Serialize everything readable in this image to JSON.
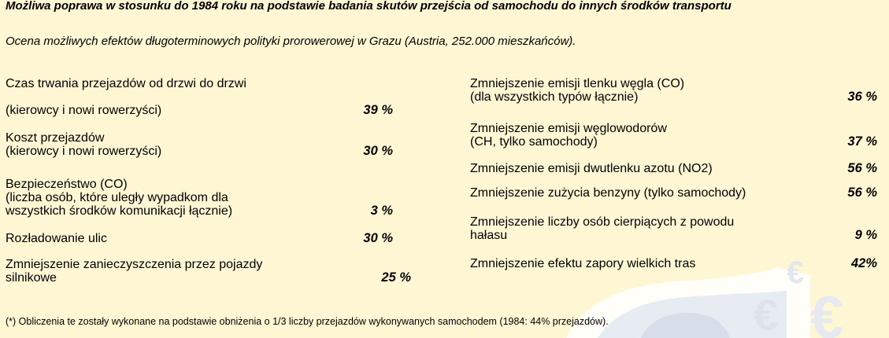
{
  "title": "Możliwa poprawa w stosunku do 1984 roku na podstawie badania skutów przejścia od samochodu do innych środków transportu",
  "subtitle": "Ocena możliwych efektów długoterminowych polityki prorowerowej w Grazu (Austria, 252.000 mieszkańców).",
  "left_items": [
    {
      "label": "Czas trwania przejazdów od drzwi do drzwi",
      "value": ""
    },
    {
      "label": "(kierowcy i nowi rowerzyści)",
      "value": "39 %"
    },
    {
      "label": "Koszt przejazdów\n(kierowcy i nowi rowerzyści)",
      "value": "30 %"
    },
    {
      "label": "Bezpieczeństwo (CO)\n(liczba osób, które uległy wypadkom dla\nwszystkich środków komunikacji łącznie)",
      "value": "3 %"
    },
    {
      "label": "Rozładowanie ulic",
      "value": "30 %"
    },
    {
      "label": "Zmniejszenie zanieczyszczenia przez pojazdy\nsilnikowe",
      "value": "25 %"
    }
  ],
  "right_items": [
    {
      "label": "Zmniejszenie emisji tlenku węgla (CO)\n(dla wszystkich typów łącznie)",
      "value": "36 %"
    },
    {
      "label": "Zmniejszenie emisji węglowodorów\n(CH, tylko samochody)",
      "value": "37 %"
    },
    {
      "label": "Zmniejszenie emisji dwutlenku azotu (NO2)",
      "value": "56 %"
    },
    {
      "label": "Zmniejszenie zużycia benzyny (tylko samochody)",
      "value": "56 %"
    },
    {
      "label": "Zmniejszenie liczby osób cierpiących z powodu\nhałasu",
      "value": "9 %"
    },
    {
      "label": "Zmniejszenie efektu zapory wielkich tras",
      "value": "42%"
    }
  ],
  "footnote": "(*) Obliczenia te zostały wykonane na podstawie obniżenia o 1/3 liczby przejazdów wykonywanych samochodem (1984: 44% przejazdów).",
  "colors": {
    "background": "#FFF6D3",
    "watermark": "#E4E8F0"
  },
  "watermark": {
    "symbols": [
      "€",
      "€",
      "€"
    ]
  }
}
